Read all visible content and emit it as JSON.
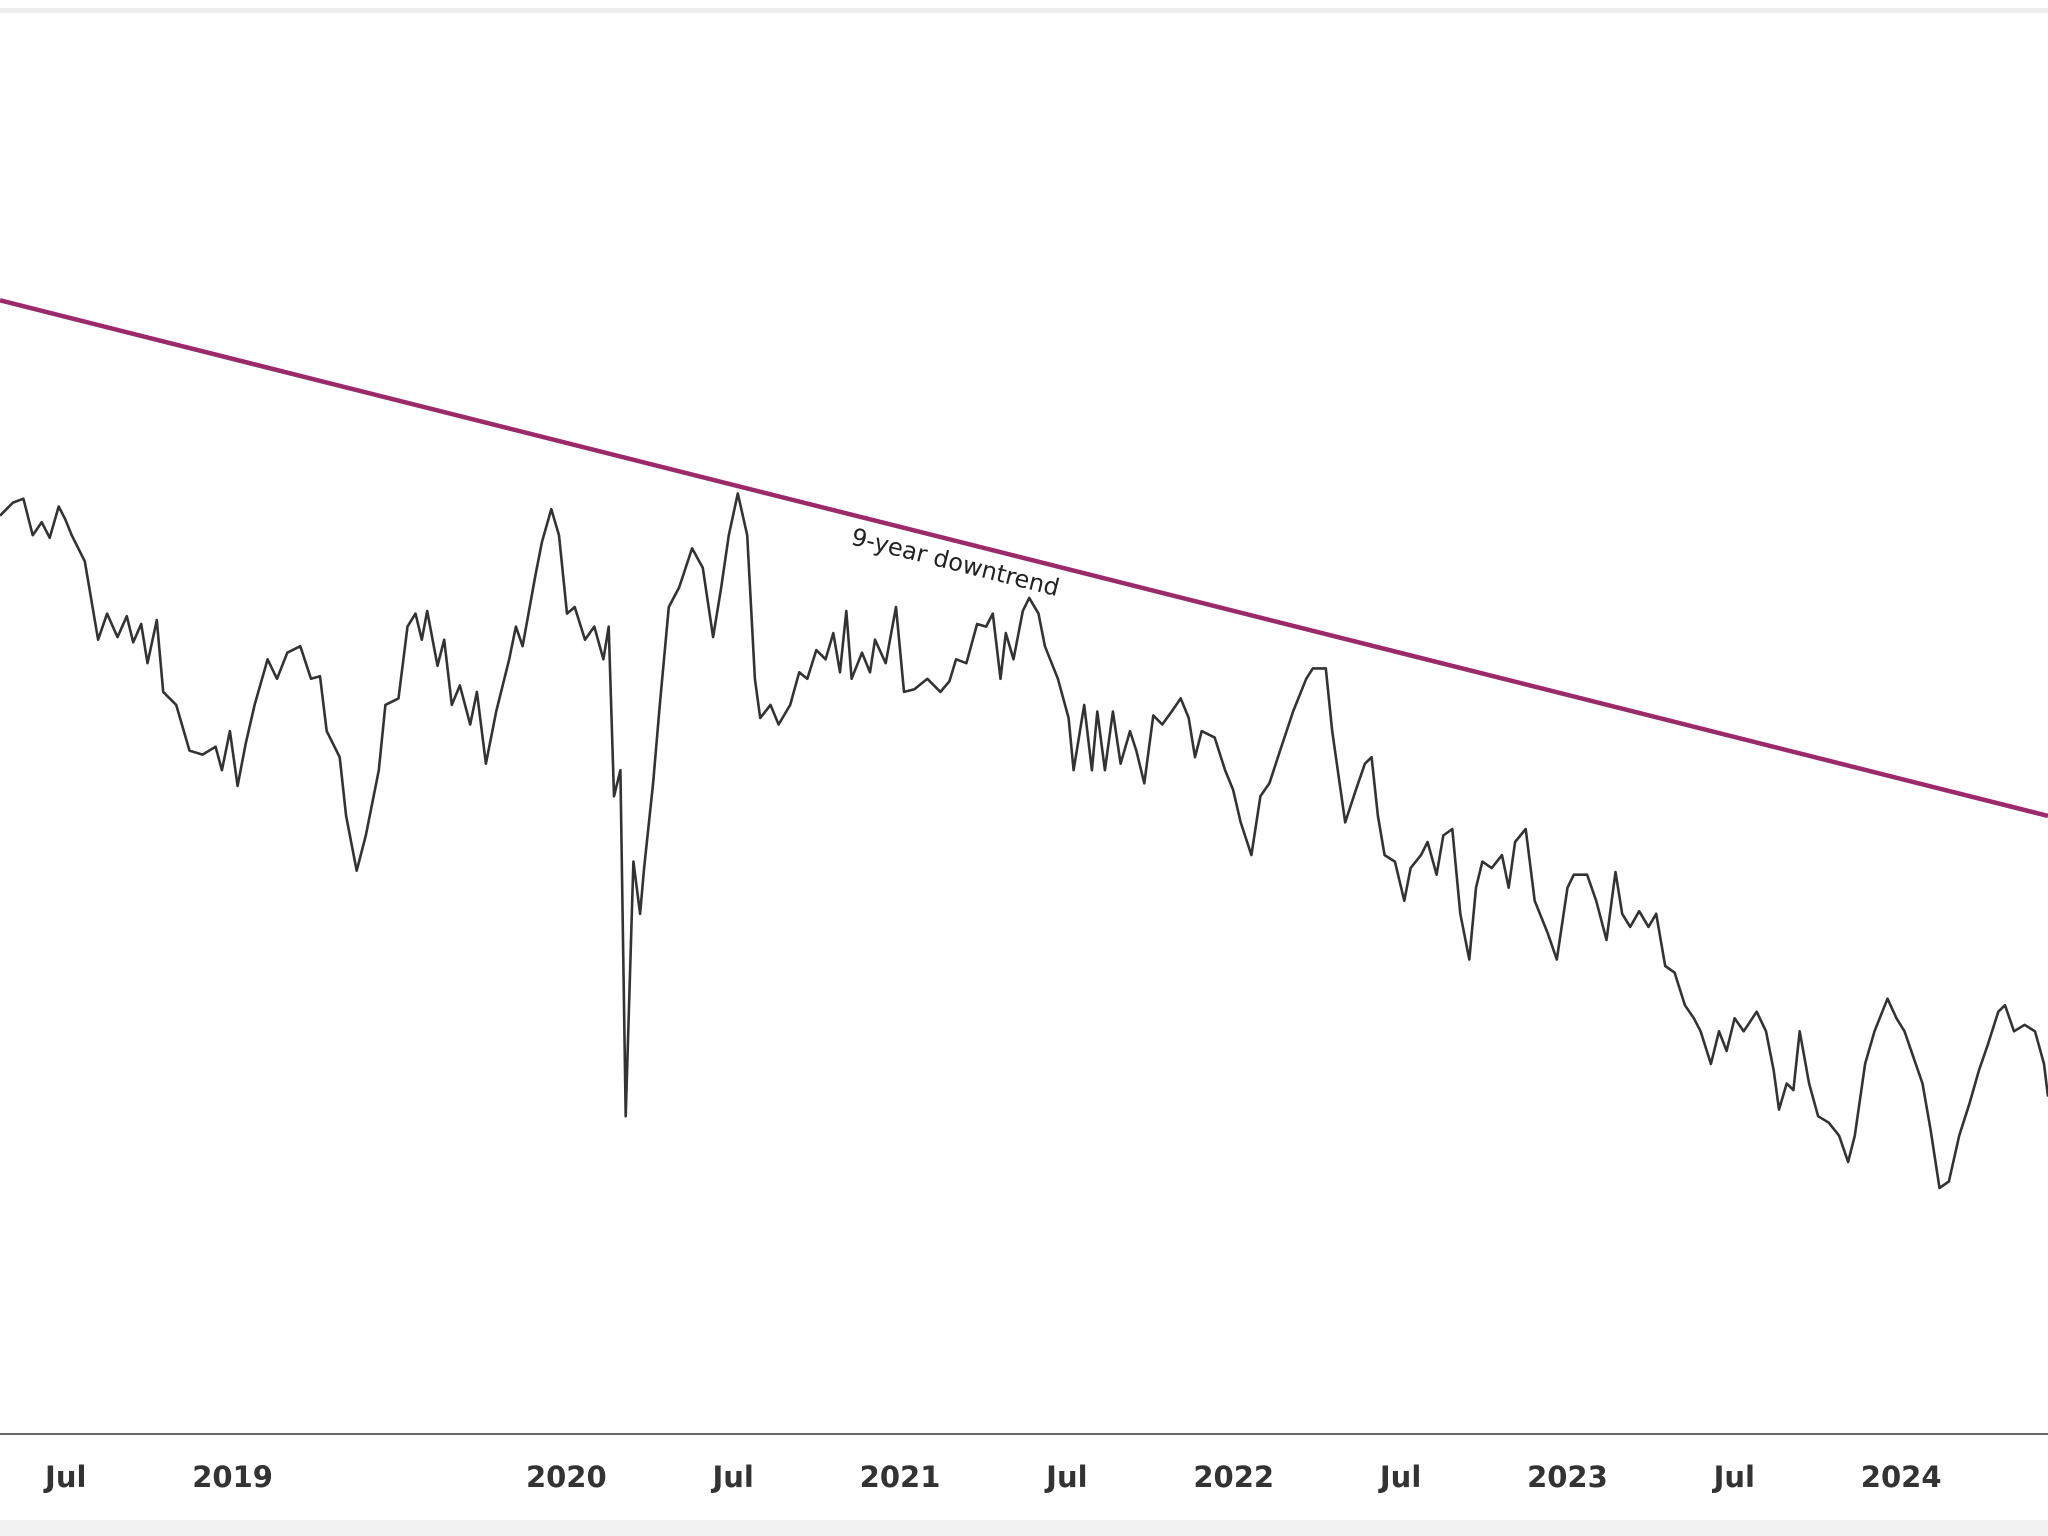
{
  "chart_data": {
    "type": "line",
    "x": [
      2018.303,
      2018.342,
      2018.373,
      2018.401,
      2018.428,
      2018.452,
      2018.479,
      2018.499,
      2018.518,
      2018.557,
      2018.597,
      2018.624,
      2018.655,
      2018.683,
      2018.702,
      2018.726,
      2018.745,
      2018.773,
      2018.792,
      2018.831,
      2018.871,
      2018.91,
      2018.949,
      2018.968,
      2018.992,
      2019.015,
      2019.039,
      2019.066,
      2019.105,
      2019.133,
      2019.164,
      2019.203,
      2019.235,
      2019.262,
      2019.282,
      2019.321,
      2019.34,
      2019.372,
      2019.399,
      2019.438,
      2019.458,
      2019.497,
      2019.524,
      2019.548,
      2019.567,
      2019.583,
      2019.614,
      2019.634,
      2019.657,
      2019.681,
      2019.712,
      2019.732,
      2019.759,
      2019.79,
      2019.829,
      2019.849,
      2019.869,
      2019.908,
      2019.927,
      2019.955,
      2019.978,
      2020.002,
      2020.025,
      2020.056,
      2020.084,
      2020.111,
      2020.127,
      2020.143,
      2020.162,
      2020.178,
      2020.201,
      2020.221,
      2020.233,
      2020.26,
      2020.28,
      2020.307,
      2020.338,
      2020.377,
      2020.409,
      2020.44,
      2020.464,
      2020.487,
      2020.514,
      2020.542,
      2020.565,
      2020.581,
      2020.612,
      2020.636,
      2020.671,
      2020.698,
      2020.722,
      2020.749,
      2020.777,
      2020.8,
      2020.82,
      2020.839,
      2020.855,
      2020.886,
      2020.91,
      2020.925,
      2020.957,
      2020.988,
      2021.012,
      2021.043,
      2021.082,
      2021.121,
      2021.148,
      2021.168,
      2021.199,
      2021.231,
      2021.258,
      2021.278,
      2021.301,
      2021.317,
      2021.34,
      2021.368,
      2021.387,
      2021.415,
      2021.434,
      2021.473,
      2021.505,
      2021.52,
      2021.552,
      2021.575,
      2021.591,
      2021.614,
      2021.638,
      2021.661,
      2021.689,
      2021.708,
      2021.732,
      2021.759,
      2021.786,
      2021.814,
      2021.841,
      2021.865,
      2021.884,
      2021.904,
      2021.943,
      2021.974,
      2021.998,
      2022.021,
      2022.053,
      2022.08,
      2022.107,
      2022.139,
      2022.178,
      2022.217,
      2022.237,
      2022.276,
      2022.295,
      2022.334,
      2022.366,
      2022.393,
      2022.413,
      2022.432,
      2022.452,
      2022.483,
      2022.511,
      2022.53,
      2022.561,
      2022.581,
      2022.608,
      2022.628,
      2022.655,
      2022.679,
      2022.706,
      2022.726,
      2022.745,
      2022.773,
      2022.804,
      2022.824,
      2022.843,
      2022.875,
      2022.902,
      2022.941,
      2022.968,
      2023.0,
      2023.019,
      2023.059,
      2023.086,
      2023.117,
      2023.144,
      2023.164,
      2023.188,
      2023.215,
      2023.243,
      2023.266,
      2023.293,
      2023.321,
      2023.352,
      2023.379,
      2023.399,
      2023.43,
      2023.454,
      2023.477,
      2023.501,
      2023.528,
      2023.567,
      2023.595,
      2023.618,
      2023.634,
      2023.657,
      2023.677,
      2023.696,
      2023.724,
      2023.751,
      2023.783,
      2023.814,
      2023.841,
      2023.861,
      2023.892,
      2023.92,
      2023.959,
      2023.986,
      2024.01,
      2024.037,
      2024.064,
      2024.088,
      2024.115,
      2024.143,
      2024.174,
      2024.205,
      2024.233,
      2024.26,
      2024.291,
      2024.311,
      2024.338,
      2024.37,
      2024.401,
      2024.428,
      2024.44
    ],
    "values": [
      70.5,
      71.5,
      71.8,
      69.0,
      70.0,
      68.8,
      71.2,
      70.2,
      69.0,
      67.0,
      61.0,
      63.0,
      61.2,
      62.8,
      60.8,
      62.2,
      59.2,
      62.5,
      57.0,
      56.0,
      52.5,
      52.2,
      52.8,
      51.0,
      54.0,
      49.8,
      53.0,
      56.0,
      59.5,
      58.0,
      60.0,
      60.5,
      58.0,
      58.2,
      54.0,
      52.0,
      47.5,
      43.3,
      46.0,
      51.0,
      56.0,
      56.5,
      62.0,
      63.0,
      61.0,
      63.2,
      59.0,
      61.0,
      56.0,
      57.5,
      54.5,
      57.0,
      51.5,
      55.5,
      59.5,
      62.0,
      60.5,
      66.0,
      68.5,
      71.0,
      69.0,
      63.0,
      63.5,
      61.0,
      62.0,
      59.5,
      62.0,
      49.0,
      51.0,
      24.5,
      44.0,
      40.0,
      43.5,
      50.0,
      56.0,
      63.5,
      65.0,
      68.0,
      66.5,
      61.2,
      65.0,
      69.0,
      72.2,
      69.0,
      58.0,
      55.0,
      56.0,
      54.5,
      56.0,
      58.5,
      58.0,
      60.2,
      59.5,
      61.5,
      58.5,
      63.2,
      58.0,
      60.0,
      58.5,
      61.0,
      59.2,
      63.5,
      57.0,
      57.2,
      58.0,
      57.0,
      57.8,
      59.5,
      59.2,
      62.2,
      62.0,
      63.0,
      58.0,
      61.5,
      59.5,
      63.2,
      64.2,
      63.0,
      60.5,
      58.0,
      55.0,
      51.0,
      56.0,
      51.0,
      55.5,
      51.0,
      55.5,
      51.5,
      54.0,
      52.5,
      50.0,
      55.2,
      54.5,
      55.5,
      56.5,
      55.0,
      52.0,
      54.0,
      53.5,
      51.0,
      49.5,
      47.0,
      44.5,
      49.0,
      50.0,
      52.5,
      55.5,
      58.0,
      58.8,
      58.8,
      54.0,
      47.0,
      49.5,
      51.5,
      52.0,
      47.5,
      44.5,
      44.0,
      41.0,
      43.5,
      44.5,
      45.5,
      43.0,
      46.0,
      46.5,
      40.0,
      36.5,
      42.0,
      44.0,
      43.5,
      44.5,
      42.0,
      45.5,
      46.5,
      41.0,
      38.5,
      36.5,
      42.0,
      43.0,
      43.0,
      41.0,
      38.0,
      43.2,
      40.0,
      39.0,
      40.2,
      39.0,
      40.0,
      36.0,
      35.5,
      33.0,
      32.0,
      31.0,
      28.5,
      31.0,
      29.5,
      32.0,
      31.0,
      32.5,
      31.0,
      28.0,
      25.0,
      27.0,
      26.5,
      31.0,
      27.0,
      24.5,
      24.0,
      23.0,
      21.0,
      23.0,
      28.5,
      31.0,
      33.5,
      32.0,
      31.0,
      29.0,
      27.0,
      23.5,
      19.0,
      19.5,
      23.0,
      25.5,
      28.0,
      30.0,
      32.5,
      33.0,
      31.0,
      31.5,
      31.0,
      28.5,
      26.0
    ],
    "color": "#333333",
    "trendline": {
      "label": "9-year downtrend",
      "x": [
        2018.303,
        2024.44
      ],
      "values": [
        87,
        47.5
      ],
      "color": "#9b2a6a"
    },
    "xlim": [
      2018.303,
      2024.44
    ],
    "ylim": [
      0,
      110
    ],
    "xticks": [
      {
        "value": 2018.5,
        "label": "Jul"
      },
      2019,
      2020,
      {
        "value": 2020.5,
        "label": "Jul"
      },
      2021,
      {
        "value": 2021.5,
        "label": "Jul"
      },
      2022,
      {
        "value": 2022.5,
        "label": "Jul"
      },
      2023,
      {
        "value": 2023.5,
        "label": "Jul"
      },
      2024
    ],
    "grid": false
  }
}
